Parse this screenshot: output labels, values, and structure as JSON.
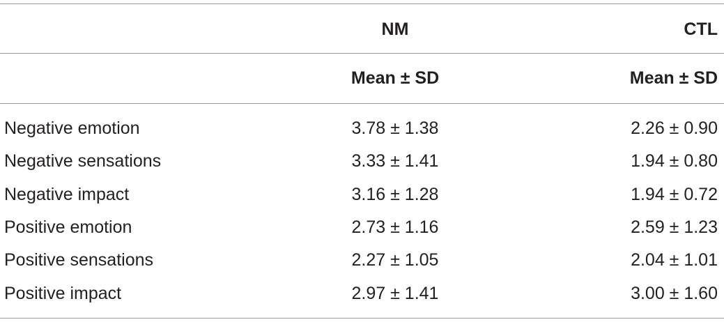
{
  "table": {
    "groups": [
      "NM",
      "CTL"
    ],
    "stats": [
      "Mean ± SD",
      "Mean ± SD"
    ],
    "rows": [
      {
        "label": "Negative emotion",
        "cells": [
          "3.78 ± 1.38",
          "2.26 ± 0.90"
        ]
      },
      {
        "label": "Negative sensations",
        "cells": [
          "3.33 ± 1.41",
          "1.94 ± 0.80"
        ]
      },
      {
        "label": "Negative impact",
        "cells": [
          "3.16 ± 1.28",
          "1.94 ± 0.72"
        ]
      },
      {
        "label": "Positive emotion",
        "cells": [
          "2.73 ± 1.16",
          "2.59 ± 1.23"
        ]
      },
      {
        "label": "Positive sensations",
        "cells": [
          "2.27 ± 1.05",
          "2.04 ± 1.01"
        ]
      },
      {
        "label": "Positive impact",
        "cells": [
          "2.97 ± 1.41",
          "3.00 ± 1.60"
        ]
      }
    ]
  }
}
